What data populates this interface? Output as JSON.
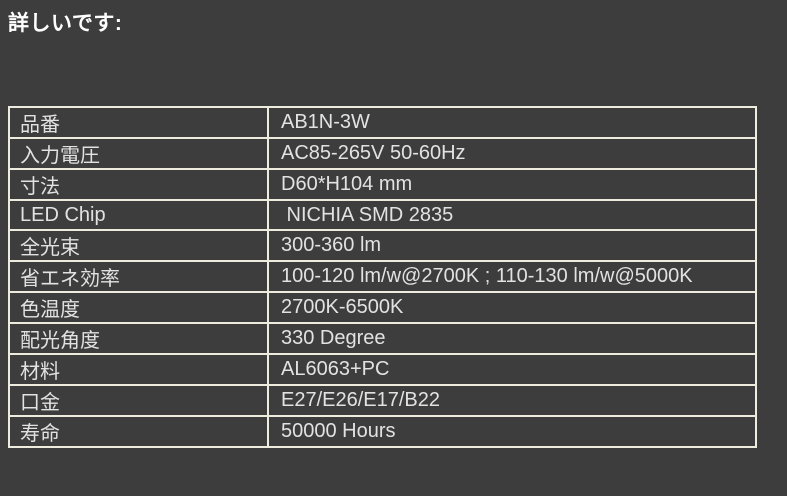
{
  "page": {
    "title": "詳しいです:",
    "background_color": "#3d3d3d",
    "border_color": "#eeebdf",
    "text_color": "#e2e2e2",
    "title_color": "#ffffff"
  },
  "spec_table": {
    "rows": [
      {
        "label": "品番",
        "value": "AB1N-3W"
      },
      {
        "label": "入力電圧",
        "value": "AC85-265V 50-60Hz"
      },
      {
        "label": "寸法",
        "value": "D60*H104 mm"
      },
      {
        "label": "LED Chip",
        "value": " NICHIA SMD 2835"
      },
      {
        "label": "全光束",
        "value": "300-360 lm"
      },
      {
        "label": "省エネ効率",
        "value": "100-120 lm/w@2700K ; 110-130 lm/w@5000K"
      },
      {
        "label": "色温度",
        "value": "2700K-6500K"
      },
      {
        "label": "配光角度",
        "value": "330 Degree"
      },
      {
        "label": "材料",
        "value": "AL6063+PC"
      },
      {
        "label": "口金",
        "value": "E27/E26/E17/B22"
      },
      {
        "label": "寿命",
        "value": "50000 Hours"
      }
    ]
  }
}
